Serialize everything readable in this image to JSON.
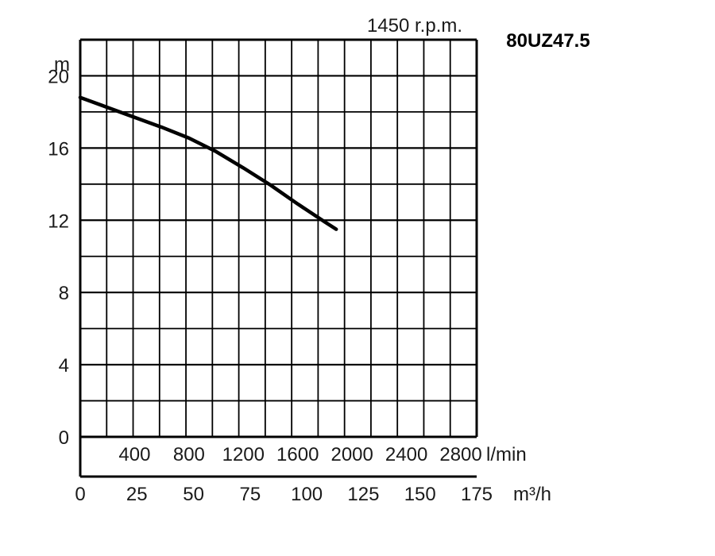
{
  "chart_data": {
    "type": "line",
    "title": "80UZ47.5",
    "subtitle": "1450 r.p.m.",
    "ylabel": "m",
    "xlabel_primary": "l/min",
    "xlabel_secondary": "m³/h",
    "ylim": [
      0,
      22
    ],
    "xlim_m3h": [
      0,
      175
    ],
    "xlim_lmin": [
      0,
      2916.67
    ],
    "grid": true,
    "y_ticks": [
      "0",
      "4",
      "8",
      "12",
      "16",
      "20"
    ],
    "x_ticks_lmin": [
      "400",
      "800",
      "1200",
      "1600",
      "2000",
      "2400",
      "2800"
    ],
    "x_ticks_m3h": [
      "0",
      "25",
      "50",
      "75",
      "100",
      "125",
      "150",
      "175"
    ],
    "series": [
      {
        "x_m3h": [
          0,
          12,
          24,
          36,
          48,
          60,
          72,
          84,
          96,
          108,
          113
        ],
        "y": [
          18.8,
          18.25,
          17.7,
          17.15,
          16.55,
          15.8,
          14.9,
          13.95,
          12.9,
          11.9,
          11.5
        ]
      }
    ]
  }
}
